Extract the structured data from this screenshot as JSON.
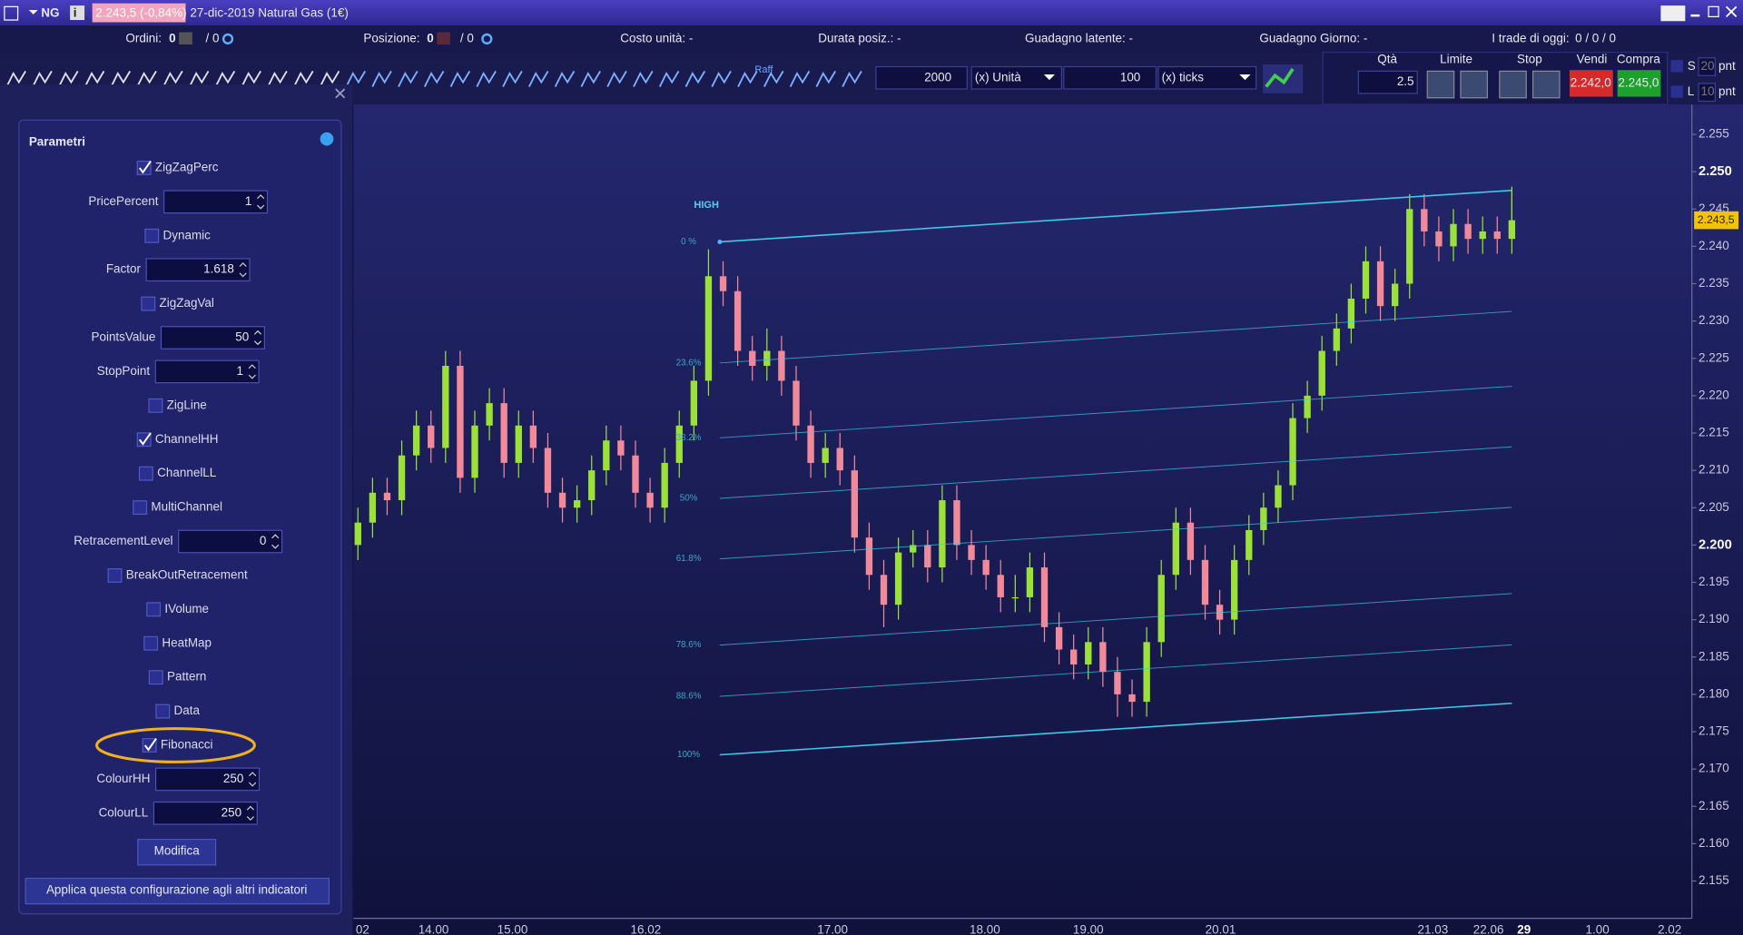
{
  "title_bar": {
    "symbol": "NG",
    "price": "2.243,5 (-0,84%)",
    "description": "27-dic-2019 Natural Gas (1€)"
  },
  "status_bar": {
    "orders_label": "Ordini:",
    "orders": 0,
    "orders_total": "/ 0",
    "position_label": "Posizione:",
    "position": 0,
    "position_total": "/ 0",
    "unit_cost": "Costo unità: -",
    "duration": "Durata posiz.: -",
    "latent_gain": "Guadagno latente: -",
    "day_gain": "Guadagno Giorno: -",
    "trades_label": "I trade di oggi:",
    "trades": "0 / 0 / 0"
  },
  "toolbar": {
    "raff": "Raff",
    "qty1": 2000,
    "unit1": "(x) Unità",
    "qty2": 100,
    "unit2": "(x) ticks",
    "qta_label": "Qtà",
    "qta": 2.5,
    "limit": "Limite",
    "stop": "Stop",
    "sell": "Vendi",
    "buy": "Compra",
    "sell_price": "2.242,0",
    "buy_price": "2.245,0",
    "s": "S",
    "s_val": 20,
    "s_unit": "pnt",
    "l": "L",
    "l_val": 10,
    "l_unit": "pnt"
  },
  "panel": {
    "title": "Parametri",
    "params": [
      {
        "name": "ZigZagPerc",
        "kind": "checkbox",
        "checked": true
      },
      {
        "name": "PricePercent",
        "kind": "input",
        "value": 1
      },
      {
        "name": "Dynamic",
        "kind": "checkbox",
        "checked": false
      },
      {
        "name": "Factor",
        "kind": "input",
        "value": 1.618
      },
      {
        "name": "ZigZagVal",
        "kind": "checkbox",
        "checked": false
      },
      {
        "name": "PointsValue",
        "kind": "input",
        "value": 50
      },
      {
        "name": "StopPoint",
        "kind": "input",
        "value": 1
      },
      {
        "name": "ZigLine",
        "kind": "checkbox",
        "checked": false
      },
      {
        "name": "ChannelHH",
        "kind": "checkbox",
        "checked": true
      },
      {
        "name": "ChannelLL",
        "kind": "checkbox",
        "checked": false
      },
      {
        "name": "MultiChannel",
        "kind": "checkbox",
        "checked": false
      },
      {
        "name": "RetracementLevel",
        "kind": "input",
        "value": 0
      },
      {
        "name": "BreakOutRetracement",
        "kind": "checkbox",
        "checked": false
      },
      {
        "name": "IVolume",
        "kind": "checkbox",
        "checked": false
      },
      {
        "name": "HeatMap",
        "kind": "checkbox",
        "checked": false
      },
      {
        "name": "Pattern",
        "kind": "checkbox",
        "checked": false
      },
      {
        "name": "Data",
        "kind": "checkbox",
        "checked": false
      },
      {
        "name": "Fibonacci",
        "kind": "checkbox",
        "checked": true,
        "highlighted": true
      },
      {
        "name": "ColourHH",
        "kind": "input",
        "value": 250
      },
      {
        "name": "ColourLL",
        "kind": "input",
        "value": 250
      }
    ],
    "modify": "Modifica",
    "apply": "Applica questa configurazione agli altri indicatori"
  },
  "chart_data": {
    "type": "candlestick",
    "up_color": "#9be13a",
    "down_color": "#f08a9a",
    "channel_color": "#3fc8e8",
    "candles": [
      [
        2.2,
        2.205,
        2.198,
        2.203
      ],
      [
        2.203,
        2.209,
        2.201,
        2.207
      ],
      [
        2.207,
        2.209,
        2.204,
        2.206
      ],
      [
        2.206,
        2.214,
        2.204,
        2.212
      ],
      [
        2.212,
        2.218,
        2.21,
        2.216
      ],
      [
        2.216,
        2.218,
        2.211,
        2.213
      ],
      [
        2.213,
        2.226,
        2.211,
        2.224
      ],
      [
        2.224,
        2.226,
        2.207,
        2.209
      ],
      [
        2.209,
        2.218,
        2.207,
        2.216
      ],
      [
        2.216,
        2.221,
        2.214,
        2.219
      ],
      [
        2.219,
        2.221,
        2.209,
        2.211
      ],
      [
        2.211,
        2.218,
        2.209,
        2.216
      ],
      [
        2.216,
        2.218,
        2.211,
        2.213
      ],
      [
        2.213,
        2.215,
        2.205,
        2.207
      ],
      [
        2.207,
        2.209,
        2.203,
        2.205
      ],
      [
        2.205,
        2.208,
        2.203,
        2.206
      ],
      [
        2.206,
        2.212,
        2.204,
        2.21
      ],
      [
        2.21,
        2.216,
        2.208,
        2.214
      ],
      [
        2.214,
        2.216,
        2.21,
        2.212
      ],
      [
        2.212,
        2.214,
        2.205,
        2.207
      ],
      [
        2.207,
        2.209,
        2.203,
        2.205
      ],
      [
        2.205,
        2.213,
        2.203,
        2.211
      ],
      [
        2.211,
        2.218,
        2.209,
        2.216
      ],
      [
        2.216,
        2.224,
        2.214,
        2.222
      ],
      [
        2.222,
        2.2396,
        2.22,
        2.236
      ],
      [
        2.236,
        2.238,
        2.232,
        2.234
      ],
      [
        2.234,
        2.236,
        2.224,
        2.226
      ],
      [
        2.226,
        2.228,
        2.222,
        2.224
      ],
      [
        2.224,
        2.229,
        2.222,
        2.226
      ],
      [
        2.226,
        2.228,
        2.22,
        2.222
      ],
      [
        2.222,
        2.224,
        2.214,
        2.216
      ],
      [
        2.216,
        2.218,
        2.209,
        2.211
      ],
      [
        2.211,
        2.215,
        2.209,
        2.213
      ],
      [
        2.213,
        2.215,
        2.208,
        2.21
      ],
      [
        2.21,
        2.212,
        2.199,
        2.201
      ],
      [
        2.201,
        2.203,
        2.194,
        2.196
      ],
      [
        2.196,
        2.198,
        2.189,
        2.192
      ],
      [
        2.192,
        2.201,
        2.19,
        2.199
      ],
      [
        2.199,
        2.202,
        2.197,
        2.2
      ],
      [
        2.2,
        2.202,
        2.195,
        2.197
      ],
      [
        2.197,
        2.208,
        2.195,
        2.206
      ],
      [
        2.206,
        2.208,
        2.198,
        2.2
      ],
      [
        2.2,
        2.202,
        2.196,
        2.198
      ],
      [
        2.198,
        2.2,
        2.194,
        2.196
      ],
      [
        2.196,
        2.198,
        2.191,
        2.193
      ],
      [
        2.193,
        2.196,
        2.191,
        2.193
      ],
      [
        2.193,
        2.199,
        2.191,
        2.197
      ],
      [
        2.197,
        2.199,
        2.187,
        2.189
      ],
      [
        2.189,
        2.191,
        2.184,
        2.186
      ],
      [
        2.186,
        2.188,
        2.182,
        2.184
      ],
      [
        2.184,
        2.189,
        2.182,
        2.187
      ],
      [
        2.187,
        2.189,
        2.181,
        2.183
      ],
      [
        2.183,
        2.185,
        2.177,
        2.18
      ],
      [
        2.18,
        2.182,
        2.177,
        2.179
      ],
      [
        2.179,
        2.189,
        2.177,
        2.187
      ],
      [
        2.187,
        2.198,
        2.185,
        2.196
      ],
      [
        2.196,
        2.205,
        2.194,
        2.203
      ],
      [
        2.203,
        2.205,
        2.196,
        2.198
      ],
      [
        2.198,
        2.2,
        2.19,
        2.192
      ],
      [
        2.192,
        2.194,
        2.188,
        2.19
      ],
      [
        2.19,
        2.2,
        2.188,
        2.198
      ],
      [
        2.198,
        2.204,
        2.196,
        2.202
      ],
      [
        2.202,
        2.207,
        2.2,
        2.205
      ],
      [
        2.205,
        2.21,
        2.203,
        2.208
      ],
      [
        2.208,
        2.219,
        2.206,
        2.217
      ],
      [
        2.217,
        2.222,
        2.215,
        2.22
      ],
      [
        2.22,
        2.228,
        2.218,
        2.226
      ],
      [
        2.226,
        2.231,
        2.224,
        2.229
      ],
      [
        2.229,
        2.235,
        2.227,
        2.233
      ],
      [
        2.233,
        2.24,
        2.231,
        2.238
      ],
      [
        2.238,
        2.24,
        2.23,
        2.232
      ],
      [
        2.232,
        2.237,
        2.23,
        2.235
      ],
      [
        2.235,
        2.247,
        2.233,
        2.245
      ],
      [
        2.245,
        2.247,
        2.24,
        2.242
      ],
      [
        2.242,
        2.244,
        2.238,
        2.24
      ],
      [
        2.24,
        2.245,
        2.238,
        2.243
      ],
      [
        2.243,
        2.245,
        2.239,
        2.241
      ],
      [
        2.241,
        2.244,
        2.239,
        2.242
      ],
      [
        2.242,
        2.244,
        2.239,
        2.241
      ],
      [
        2.241,
        2.248,
        2.239,
        2.2435
      ]
    ],
    "ylim": [
      2.15,
      2.259
    ],
    "yticks": [
      2.155,
      {
        "value": 2.16,
        "label": "2.160"
      },
      2.165,
      {
        "value": 2.17,
        "label": "2.170"
      },
      2.175,
      {
        "value": 2.18,
        "label": "2.180"
      },
      2.185,
      {
        "value": 2.19,
        "label": "2.190"
      },
      2.195,
      {
        "value": 2.2,
        "label": "2.200"
      },
      2.205,
      {
        "value": 2.21,
        "label": "2.210"
      },
      2.215,
      {
        "value": 2.22,
        "label": "2.220"
      },
      2.225,
      {
        "value": 2.23,
        "label": "2.230"
      },
      2.235,
      {
        "value": 2.24,
        "label": "2.240"
      },
      2.245,
      {
        "value": 2.25,
        "label": "2.250"
      },
      2.255
    ],
    "last_price": {
      "value": 2.2435,
      "label": "2.243,5"
    },
    "x_labels": [
      "02",
      "14.00",
      "15.00",
      "16.02",
      "17.00",
      "18.00",
      "19.00",
      "20.01",
      "21.03",
      "22.06",
      "29",
      "1.00",
      "2.02"
    ],
    "high_label": "HIGH",
    "channel": {
      "high_start": 2.2406,
      "high_end": 2.2475,
      "low_start": 2.1719,
      "low_end": 2.1788
    },
    "fib_levels": [
      {
        "value": 0,
        "label": "0 %"
      },
      {
        "value": 23.6,
        "label": "23.6%"
      },
      {
        "value": 38.2,
        "label": "38.2%"
      },
      {
        "value": 50,
        "label": "50%"
      },
      {
        "value": 61.8,
        "label": "61.8%"
      },
      {
        "value": 78.6,
        "label": "78.6%"
      },
      {
        "value": 88.6,
        "label": "88.6%"
      },
      {
        "value": 100,
        "label": "100%"
      }
    ]
  }
}
